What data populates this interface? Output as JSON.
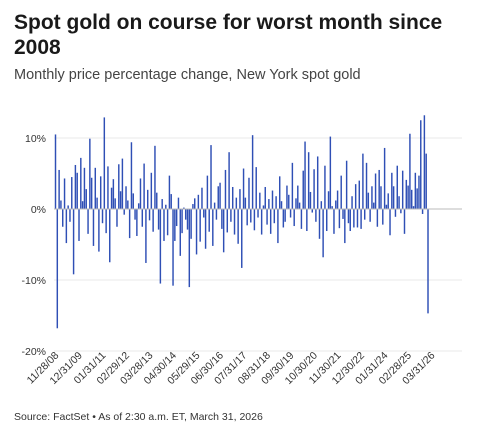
{
  "header": {
    "title": "Spot gold on course for worst month since 2008",
    "subtitle": "Monthly price percentage change, New York spot gold"
  },
  "footer": {
    "source": "Source: FactSet • As of 2:30 a.m. ET, March 31, 2026"
  },
  "colors": {
    "bar": "#2f4fb5",
    "gridline": "#e8e8e8",
    "zero_line": "#bbbbbb",
    "tick_text": "#333333"
  },
  "chart_data": {
    "type": "bar",
    "title": "Spot gold on course for worst month since 2008",
    "subtitle": "Monthly price percentage change, New York spot gold",
    "xlabel": "",
    "ylabel": "",
    "ylim": [
      -20,
      14
    ],
    "y_ticks": [
      {
        "value": 10,
        "label": "10%"
      },
      {
        "value": 0,
        "label": "0%"
      },
      {
        "value": -10,
        "label": "-10%"
      },
      {
        "value": -20,
        "label": "-20%"
      }
    ],
    "x_tick_labels": [
      {
        "label": "11/28/08",
        "index": 1
      },
      {
        "label": "12/31/09",
        "index": 14
      },
      {
        "label": "01/31/11",
        "index": 27
      },
      {
        "label": "02/29/12",
        "index": 40
      },
      {
        "label": "03/28/13",
        "index": 53
      },
      {
        "label": "04/30/14",
        "index": 66
      },
      {
        "label": "05/29/15",
        "index": 79
      },
      {
        "label": "06/30/16",
        "index": 92
      },
      {
        "label": "07/31/17",
        "index": 105
      },
      {
        "label": "08/31/18",
        "index": 118
      },
      {
        "label": "09/30/19",
        "index": 131
      },
      {
        "label": "10/30/20",
        "index": 144
      },
      {
        "label": "11/30/21",
        "index": 157
      },
      {
        "label": "12/30/22",
        "index": 170
      },
      {
        "label": "01/31/24",
        "index": 183
      },
      {
        "label": "02/28/25",
        "index": 196
      },
      {
        "label": "03/31/26",
        "index": 209
      }
    ],
    "grid": true,
    "legend": "none",
    "series": [
      {
        "values": [
          10.5,
          -16.8,
          5.5,
          1.2,
          -2.5,
          4.3,
          -4.8,
          0.5,
          -1.8,
          4.5,
          -9.2,
          6.2,
          5.1,
          -4.5,
          7.2,
          1.1,
          5.8,
          2.8,
          -3.5,
          9.9,
          4.4,
          -5.2,
          5.8,
          1.6,
          -6.0,
          4.6,
          -2.0,
          12.9,
          -3.4,
          6.0,
          -7.5,
          3.0,
          4.2,
          1.5,
          -2.5,
          6.3,
          2.5,
          7.1,
          -0.8,
          3.2,
          1.2,
          -4.1,
          9.4,
          2.2,
          -1.5,
          -3.8,
          0.8,
          4.3,
          -2.5,
          6.4,
          -7.6,
          2.7,
          -1.6,
          5.1,
          -3.2,
          8.9,
          2.3,
          -2.9,
          -10.5,
          1.4,
          -4.5,
          0.6,
          -3.7,
          4.7,
          2.1,
          -10.8,
          -4.5,
          -2.4,
          1.6,
          -6.6,
          -3.4,
          0.2,
          -1.5,
          -2.9,
          -11.0,
          -4.2,
          0.7,
          1.5,
          -6.4,
          2.0,
          -4.6,
          3.0,
          -1.2,
          -5.6,
          4.7,
          -3.2,
          9.0,
          -5.2,
          0.9,
          -1.5,
          3.2,
          3.7,
          -2.8,
          -6.1,
          5.5,
          -3.3,
          8.0,
          -1.8,
          3.1,
          -3.6,
          1.6,
          -4.9,
          2.8,
          -8.3,
          5.7,
          1.6,
          -2.3,
          4.4,
          -1.9,
          10.4,
          -3.0,
          5.9,
          -1.2,
          2.3,
          -3.6,
          0.5,
          3.1,
          -2.2,
          1.4,
          -3.5,
          2.6,
          -2.0,
          1.8,
          -4.8,
          4.6,
          1.1,
          -2.6,
          -1.8,
          3.3,
          2.0,
          -1.2,
          6.5,
          -2.4,
          1.5,
          3.3,
          0.9,
          -2.8,
          5.4,
          9.5,
          -3.1,
          8.0,
          2.4,
          -0.5,
          5.6,
          -1.8,
          7.4,
          -4.2,
          1.1,
          -6.8,
          6.1,
          -3.1,
          2.5,
          10.2,
          0.4,
          -3.5,
          1.2,
          2.6,
          -2.7,
          4.7,
          -1.4,
          -4.8,
          6.8,
          -2.0,
          -3.1,
          1.8,
          -2.6,
          3.5,
          -2.6,
          4.0,
          -2.8,
          7.8,
          -1.5,
          6.5,
          2.3,
          -1.8,
          3.2,
          0.9,
          5.0,
          -2.5,
          5.5,
          3.2,
          -2.2,
          8.6,
          0.6,
          2.2,
          -3.7,
          5.1,
          3.2,
          -1.1,
          6.1,
          1.8,
          -0.6,
          5.4,
          -3.5,
          4.1,
          3.3,
          10.6,
          2.7,
          0.4,
          5.1,
          2.9,
          4.7,
          12.5,
          -0.7,
          13.2,
          7.8,
          -14.7
        ]
      }
    ]
  }
}
